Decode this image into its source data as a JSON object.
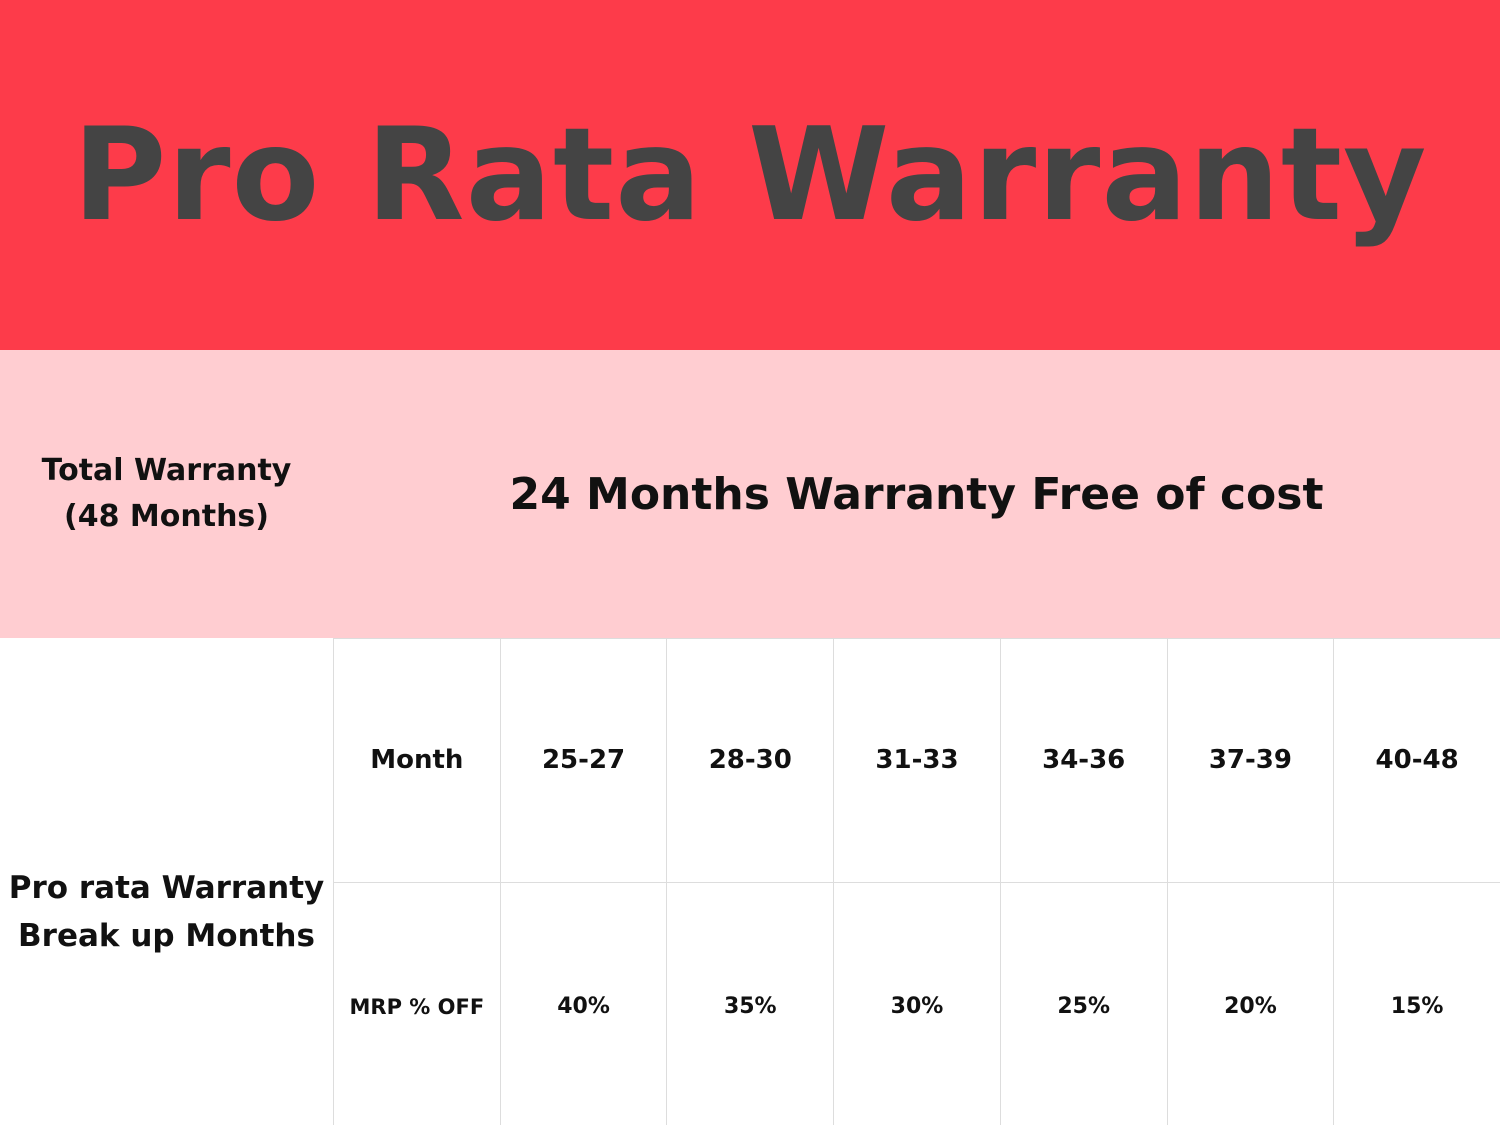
{
  "header": {
    "title": "Pro Rata Warranty"
  },
  "summary": {
    "label": [
      "Total Warranty",
      "(48 Months)"
    ],
    "text": "24 Months Warranty Free of cost"
  },
  "table": {
    "row_header": [
      "Pro rata Warranty",
      "Break up Months"
    ],
    "rows": [
      [
        "Month",
        "25-27",
        "28-30",
        "31-33",
        "34-36",
        "37-39",
        "40-48"
      ],
      [
        "MRP % OFF",
        "40%",
        "35%",
        "30%",
        "25%",
        "20%",
        "15%"
      ]
    ]
  }
}
